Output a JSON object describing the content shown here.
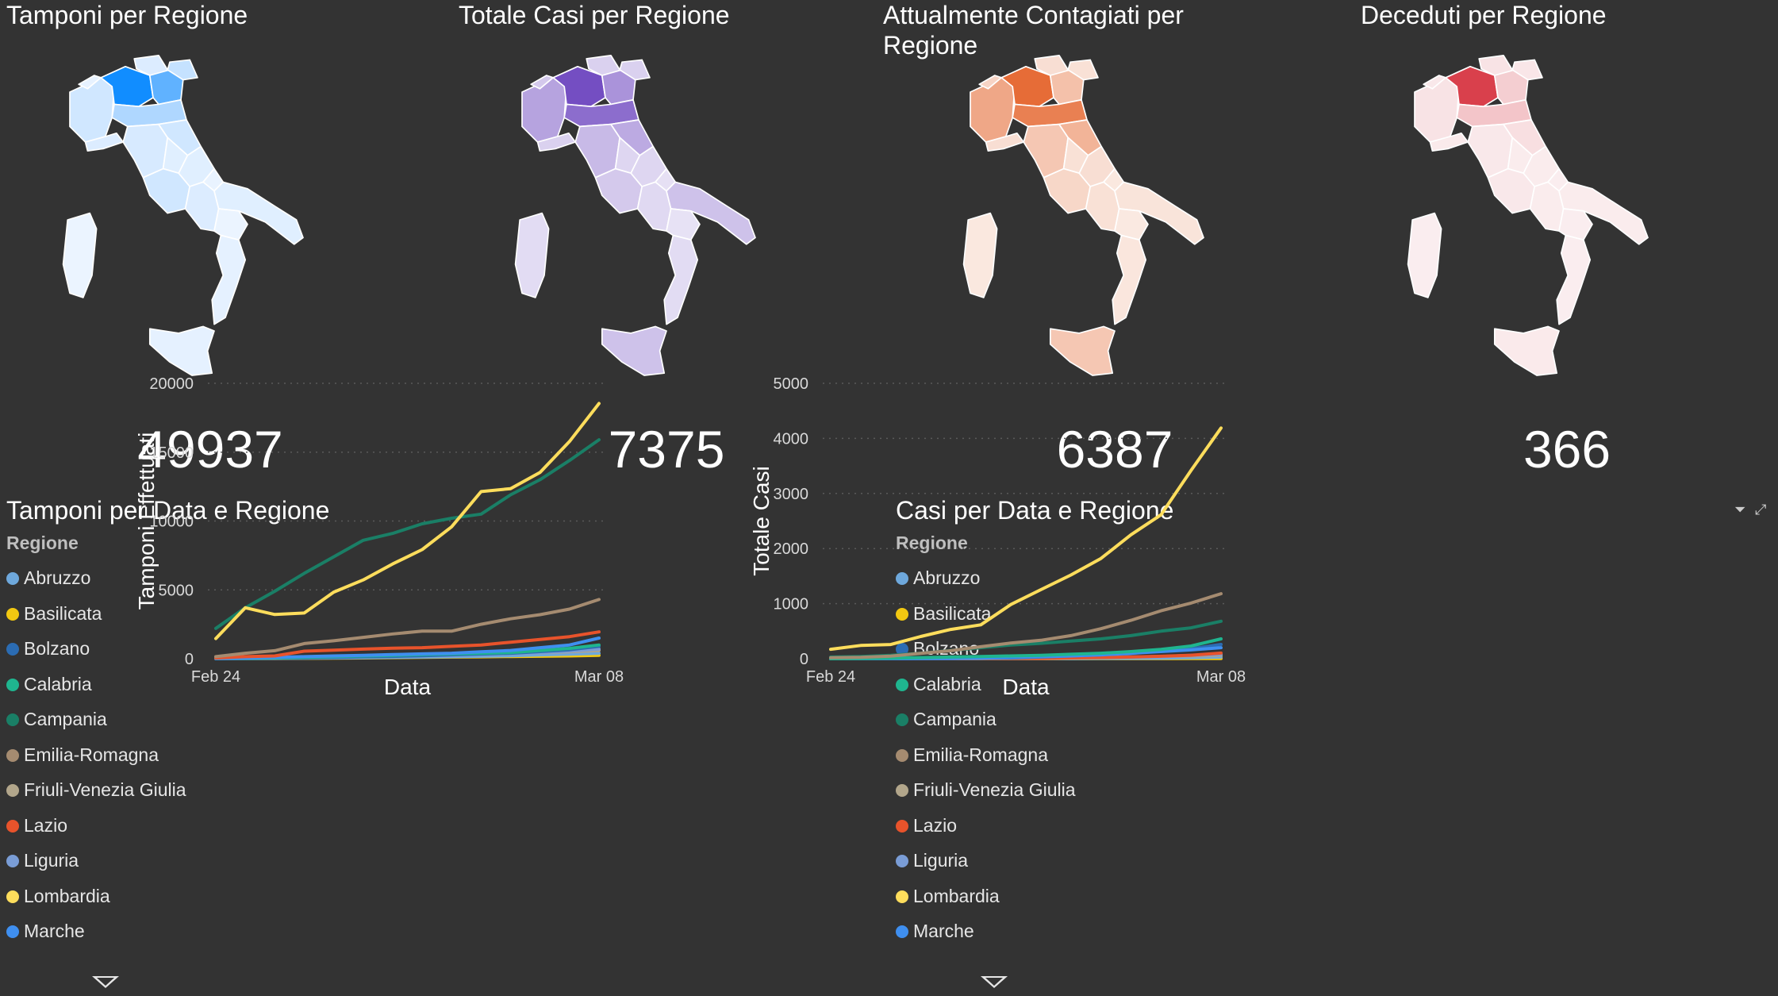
{
  "maps": [
    {
      "title": "Tamponi per Regione",
      "kpi": "49937",
      "palette": {
        "low": "#f2f7ff",
        "high": "#118dff"
      }
    },
    {
      "title": "Totale Casi per Regione",
      "kpi": "7375",
      "palette": {
        "low": "#ece8f7",
        "high": "#744ec2"
      }
    },
    {
      "title": "Attualmente Contagiati per Regione",
      "kpi": "6387",
      "palette": {
        "low": "#fbeee8",
        "high": "#e66c37"
      }
    },
    {
      "title": "Deceduti per Regione",
      "kpi": "366",
      "palette": {
        "low": "#fbf1f2",
        "high": "#d9404c"
      }
    }
  ],
  "legend": {
    "title": "Regione",
    "items": [
      {
        "label": "Abruzzo",
        "color": "#6ea8dc"
      },
      {
        "label": "Basilicata",
        "color": "#f2c811"
      },
      {
        "label": "Bolzano",
        "color": "#2b6cb3"
      },
      {
        "label": "Calabria",
        "color": "#1fb58f"
      },
      {
        "label": "Campania",
        "color": "#1a7f66"
      },
      {
        "label": "Emilia-Romagna",
        "color": "#a58b70"
      },
      {
        "label": "Friuli-Venezia Giulia",
        "color": "#b2a68b"
      },
      {
        "label": "Lazio",
        "color": "#e8532b"
      },
      {
        "label": "Liguria",
        "color": "#7a9dd6"
      },
      {
        "label": "Lombardia",
        "color": "#fddd5c"
      },
      {
        "label": "Marche",
        "color": "#3f8ff0"
      }
    ]
  },
  "chart_data": [
    {
      "type": "line",
      "title": "Tamponi per Data e Regione",
      "xlabel": "Data",
      "ylabel": "Tamponi Effettuati",
      "x": [
        "Feb 24",
        "Feb 25",
        "Feb 26",
        "Feb 27",
        "Feb 28",
        "Feb 29",
        "Mar 01",
        "Mar 02",
        "Mar 03",
        "Mar 04",
        "Mar 05",
        "Mar 06",
        "Mar 07",
        "Mar 08"
      ],
      "x_tick_labels": [
        "Feb 24",
        "Mar 08"
      ],
      "yticks": [
        0,
        5000,
        10000,
        15000,
        20000
      ],
      "ylim": [
        0,
        20000
      ],
      "grid": true,
      "series": [
        {
          "name": "Lombardia",
          "color": "#fddd5c",
          "values": [
            1463,
            3700,
            3208,
            3320,
            4835,
            5723,
            6879,
            7925,
            9577,
            12138,
            12354,
            13525,
            15778,
            18534
          ]
        },
        {
          "name": "Campania",
          "color": "#1a7f66",
          "values": [
            2200,
            3700,
            4900,
            6200,
            7400,
            8600,
            9100,
            9800,
            10200,
            10500,
            11900,
            13000,
            14400,
            15900
          ]
        },
        {
          "name": "Emilia-Romagna",
          "color": "#a58b70",
          "values": [
            148,
            400,
            580,
            1100,
            1300,
            1550,
            1800,
            2000,
            2000,
            2500,
            2900,
            3200,
            3600,
            4300
          ]
        },
        {
          "name": "Lazio",
          "color": "#e8532b",
          "values": [
            60,
            150,
            200,
            550,
            620,
            700,
            760,
            800,
            900,
            1000,
            1200,
            1400,
            1600,
            1950
          ]
        },
        {
          "name": "Marche",
          "color": "#3f8ff0",
          "values": [
            20,
            50,
            100,
            150,
            200,
            250,
            300,
            350,
            400,
            500,
            600,
            800,
            1000,
            1500
          ]
        },
        {
          "name": "Calabria",
          "color": "#1fb58f",
          "values": [
            10,
            30,
            60,
            100,
            150,
            200,
            250,
            300,
            350,
            400,
            450,
            600,
            750,
            1000
          ]
        },
        {
          "name": "Bolzano",
          "color": "#2b6cb3",
          "values": [
            10,
            20,
            40,
            60,
            90,
            130,
            170,
            220,
            280,
            340,
            400,
            520,
            650,
            900
          ]
        },
        {
          "name": "Liguria",
          "color": "#7a9dd6",
          "values": [
            10,
            20,
            30,
            50,
            80,
            120,
            160,
            200,
            250,
            300,
            350,
            450,
            550,
            700
          ]
        },
        {
          "name": "Friuli-Venezia Giulia",
          "color": "#b2a68b",
          "values": [
            10,
            40,
            80,
            120,
            160,
            200,
            240,
            280,
            320,
            360,
            400,
            450,
            500,
            600
          ]
        },
        {
          "name": "Abruzzo",
          "color": "#6ea8dc",
          "values": [
            10,
            15,
            25,
            40,
            60,
            80,
            100,
            120,
            150,
            180,
            220,
            280,
            330,
            400
          ]
        },
        {
          "name": "Basilicata",
          "color": "#f2c811",
          "values": [
            5,
            10,
            20,
            30,
            40,
            60,
            80,
            100,
            120,
            140,
            160,
            180,
            200,
            250
          ]
        }
      ]
    },
    {
      "type": "line",
      "title": "Casi per Data e Regione",
      "xlabel": "Data",
      "ylabel": "Totale Casi",
      "x": [
        "Feb 24",
        "Feb 25",
        "Feb 26",
        "Feb 27",
        "Feb 28",
        "Feb 29",
        "Mar 01",
        "Mar 02",
        "Mar 03",
        "Mar 04",
        "Mar 05",
        "Mar 06",
        "Mar 07",
        "Mar 08"
      ],
      "x_tick_labels": [
        "Feb 24",
        "Mar 08"
      ],
      "yticks": [
        0,
        1000,
        2000,
        3000,
        4000,
        5000
      ],
      "ylim": [
        0,
        5000
      ],
      "grid": true,
      "series": [
        {
          "name": "Lombardia",
          "color": "#fddd5c",
          "values": [
            172,
            240,
            258,
            403,
            531,
            615,
            984,
            1254,
            1520,
            1820,
            2251,
            2612,
            3420,
            4189
          ]
        },
        {
          "name": "Emilia-Romagna",
          "color": "#a58b70",
          "values": [
            18,
            26,
            47,
            97,
            145,
            217,
            285,
            335,
            420,
            544,
            698,
            870,
            1010,
            1180
          ]
        },
        {
          "name": "Campania",
          "color": "#1a7f66",
          "values": [
            30,
            40,
            60,
            100,
            150,
            200,
            250,
            280,
            320,
            360,
            420,
            500,
            560,
            680
          ]
        },
        {
          "name": "Calabria",
          "color": "#1fb58f",
          "values": [
            0,
            5,
            10,
            20,
            30,
            40,
            50,
            60,
            80,
            100,
            130,
            170,
            230,
            360
          ]
        },
        {
          "name": "Marche",
          "color": "#3f8ff0",
          "values": [
            0,
            0,
            1,
            3,
            6,
            11,
            25,
            35,
            50,
            70,
            100,
            130,
            160,
            200
          ]
        },
        {
          "name": "Bolzano",
          "color": "#2b6cb3",
          "values": [
            0,
            0,
            0,
            1,
            5,
            10,
            15,
            30,
            50,
            70,
            100,
            140,
            180,
            260
          ]
        },
        {
          "name": "Lazio",
          "color": "#e8532b",
          "values": [
            3,
            3,
            3,
            3,
            3,
            6,
            6,
            6,
            15,
            21,
            30,
            44,
            64,
            102
          ]
        },
        {
          "name": "Liguria",
          "color": "#7a9dd6",
          "values": [
            0,
            0,
            1,
            11,
            20,
            20,
            25,
            25,
            25,
            26,
            35,
            40,
            60,
            80
          ]
        },
        {
          "name": "Friuli-Venezia Giulia",
          "color": "#b2a68b",
          "values": [
            0,
            0,
            0,
            1,
            2,
            5,
            10,
            15,
            20,
            25,
            30,
            40,
            50,
            60
          ]
        },
        {
          "name": "Abruzzo",
          "color": "#6ea8dc",
          "values": [
            0,
            0,
            0,
            1,
            1,
            1,
            2,
            5,
            5,
            7,
            9,
            11,
            20,
            30
          ]
        },
        {
          "name": "Basilicata",
          "color": "#f2c811",
          "values": [
            0,
            0,
            0,
            0,
            0,
            0,
            0,
            0,
            0,
            1,
            1,
            2,
            3,
            5
          ]
        }
      ]
    }
  ]
}
